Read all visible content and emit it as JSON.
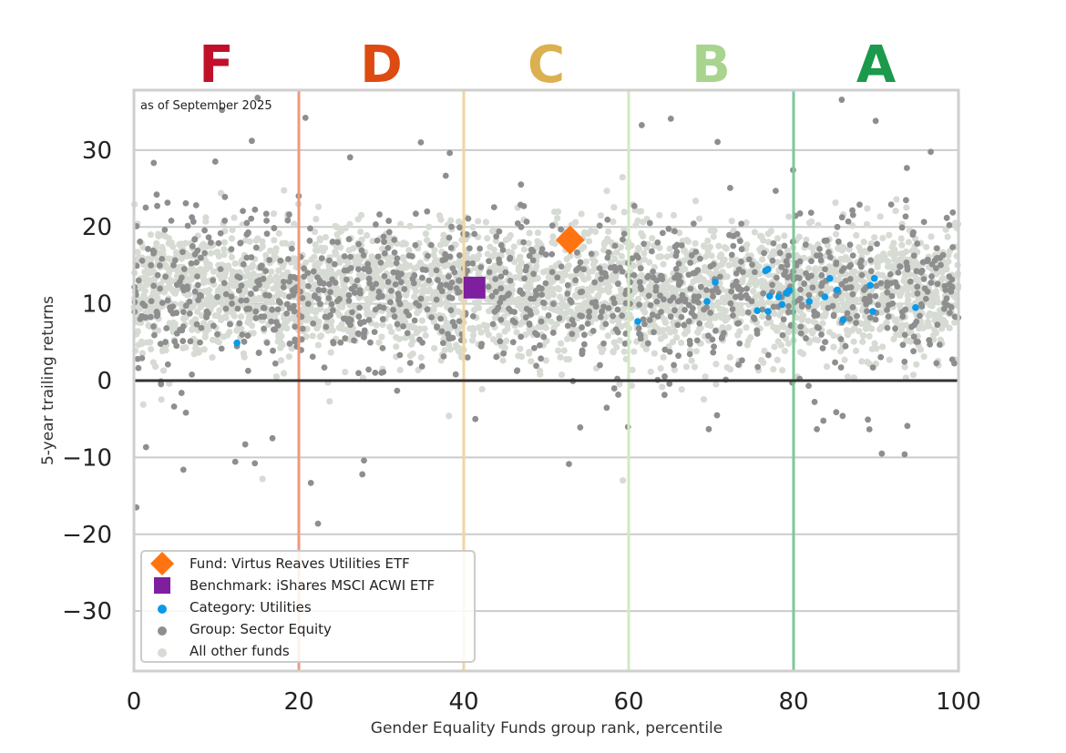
{
  "chart_data": {
    "type": "scatter",
    "annotation": "as of September 2025",
    "xlabel": "Gender Equality Funds group rank, percentile",
    "ylabel": "5-year trailing returns",
    "xlim": [
      0,
      100
    ],
    "ylim": [
      -37.8,
      37.8
    ],
    "xticks": [
      "0",
      "20",
      "40",
      "60",
      "80",
      "100"
    ],
    "yticks": [
      "30",
      "20",
      "10",
      "0",
      "−10",
      "−20",
      "−30"
    ],
    "ytick_values": [
      30,
      20,
      10,
      0,
      -10,
      -20,
      -30
    ],
    "grid": "horizontal",
    "legend_position": "bottom-left",
    "grades": [
      {
        "label": "F",
        "center": 10,
        "color": "#c0102a"
      },
      {
        "label": "D",
        "center": 30,
        "color": "#dd4a12"
      },
      {
        "label": "C",
        "center": 50,
        "color": "#dcb050"
      },
      {
        "label": "B",
        "center": 70,
        "color": "#a8d48e"
      },
      {
        "label": "A",
        "center": 90,
        "color": "#1a9a4a"
      }
    ],
    "grade_boundaries": [
      {
        "x": 20,
        "color": "#ee9a7c"
      },
      {
        "x": 40,
        "color": "#f0d6a0"
      },
      {
        "x": 60,
        "color": "#d2e8c2"
      },
      {
        "x": 80,
        "color": "#7ec79c"
      }
    ],
    "series": [
      {
        "name": "Fund: Virtus Reaves Utilities ETF",
        "color": "#ff7410",
        "marker": "diamond",
        "points": [
          [
            52.9,
            18.3
          ]
        ]
      },
      {
        "name": "Benchmark: iShares MSCI ACWI ETF",
        "color": "#7e1fa0",
        "marker": "square",
        "points": [
          [
            41.3,
            12.1
          ]
        ]
      },
      {
        "name": "Category: Utilities",
        "color": "#0a9ae8",
        "marker": "dot",
        "points": [
          [
            12.5,
            4.9
          ],
          [
            61.1,
            7.7
          ],
          [
            69.5,
            10.3
          ],
          [
            70.5,
            12.8
          ],
          [
            76.6,
            14.3
          ],
          [
            76.9,
            14.5
          ],
          [
            75.6,
            9.1
          ],
          [
            77.1,
            11.0
          ],
          [
            76.9,
            9.0
          ],
          [
            78.2,
            10.9
          ],
          [
            78.6,
            9.9
          ],
          [
            79.1,
            11.4
          ],
          [
            79.5,
            11.7
          ],
          [
            81.9,
            10.3
          ],
          [
            83.8,
            10.9
          ],
          [
            84.4,
            13.3
          ],
          [
            85.3,
            11.8
          ],
          [
            86.0,
            7.9
          ],
          [
            89.6,
            9.0
          ],
          [
            89.3,
            12.4
          ],
          [
            89.8,
            13.3
          ],
          [
            94.8,
            9.5
          ]
        ]
      },
      {
        "name": "Group: Sector Equity",
        "color": "#8e8e8e",
        "marker": "dot",
        "distribution": {
          "count": 1100,
          "mean": 11.5,
          "sd": 7.5
        },
        "points": [
          [
            0.3,
            -16.5
          ],
          [
            15,
            36.8
          ],
          [
            20.8,
            34.2
          ],
          [
            6,
            -11.6
          ],
          [
            27.7,
            -12.2
          ],
          [
            27.9,
            -10.4
          ],
          [
            90.7,
            -9.5
          ],
          [
            93.8,
            -5.9
          ],
          [
            13.5,
            -8.3
          ],
          [
            16.8,
            -7.5
          ],
          [
            34.8,
            31
          ],
          [
            14.3,
            31.2
          ],
          [
            46,
            5
          ],
          [
            41.4,
            -5
          ]
        ]
      },
      {
        "name": "All other funds",
        "color": "#d6dbd4",
        "marker": "dot",
        "distribution": {
          "count": 3200,
          "mean": 11.5,
          "sd": 4.2
        },
        "points": [
          [
            59.3,
            -13
          ],
          [
            15.6,
            -12.8
          ],
          [
            38.2,
            -4.6
          ]
        ]
      }
    ]
  }
}
